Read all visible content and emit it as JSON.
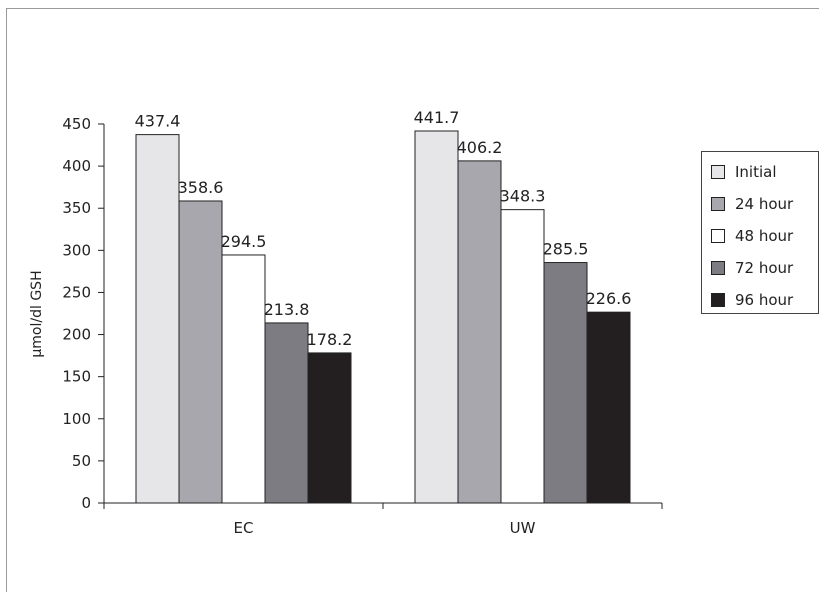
{
  "chart_data": {
    "type": "bar",
    "categories": [
      "EC",
      "UW"
    ],
    "series": [
      {
        "name": "Initial",
        "values": [
          437.4,
          441.7
        ],
        "color": "#e6e6e9"
      },
      {
        "name": "24 hour",
        "values": [
          358.6,
          406.2
        ],
        "color": "#a7a7ad"
      },
      {
        "name": "48 hour",
        "values": [
          294.5,
          348.3
        ],
        "color": "#ffffff"
      },
      {
        "name": "72 hour",
        "values": [
          213.8,
          285.5
        ],
        "color": "#7c7c82"
      },
      {
        "name": "96 hour",
        "values": [
          178.2,
          226.6
        ],
        "color": "#231f20"
      }
    ],
    "data_labels": [
      [
        "437.4",
        "441.7"
      ],
      [
        "358.6",
        "406.2"
      ],
      [
        "294.5",
        "348.3"
      ],
      [
        "213.8",
        "285.5"
      ],
      [
        "178.2",
        "226.6"
      ]
    ],
    "ylabel": "µmol/dl GSH",
    "xlabel": "",
    "ylim": [
      0,
      450
    ],
    "yticks": [
      "0",
      "50",
      "100",
      "150",
      "200",
      "250",
      "300",
      "350",
      "400",
      "450"
    ],
    "grid": false,
    "legend_position": "right"
  }
}
